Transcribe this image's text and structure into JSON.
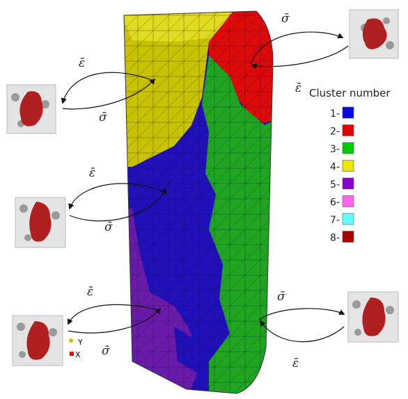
{
  "symbols": {
    "strain": "ε̄",
    "stress": "σ̄"
  },
  "legend": {
    "title": "Cluster number",
    "items": [
      {
        "label": "1",
        "color": "#0a0ae0"
      },
      {
        "label": "2",
        "color": "#e00000"
      },
      {
        "label": "3",
        "color": "#00cc00"
      },
      {
        "label": "4",
        "color": "#e8e800"
      },
      {
        "label": "5",
        "color": "#8a00cc"
      },
      {
        "label": "6",
        "color": "#ff66ee"
      },
      {
        "label": "7",
        "color": "#66ffff"
      },
      {
        "label": "8",
        "color": "#aa0000"
      }
    ]
  },
  "axis_triad": {
    "y": "Y",
    "x": "X"
  },
  "colors": {
    "blue": "#1f10b8",
    "red": "#dd0a0a",
    "green": "#1fa51f",
    "yellow": "#c8c200",
    "purple": "#6a1aa8",
    "mesh": "#0a0a40",
    "rve_box": "#d8d8d8",
    "rve_particle": "#b02020"
  }
}
